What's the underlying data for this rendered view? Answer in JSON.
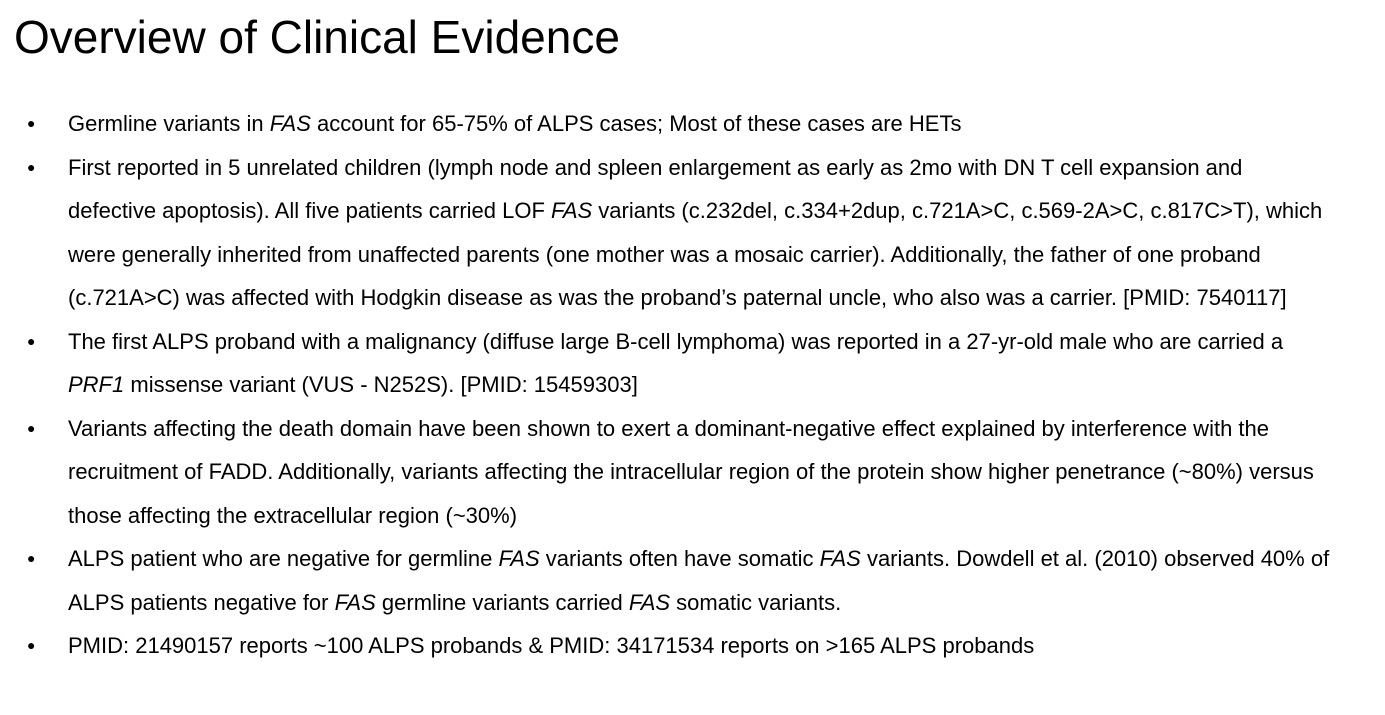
{
  "page": {
    "title": "Overview of Clinical Evidence"
  },
  "colors": {
    "text": "#000000",
    "background": "#ffffff"
  },
  "content": {
    "bullets": [
      {
        "segments": [
          {
            "text": "Germline variants in ",
            "italic": false
          },
          {
            "text": "FAS",
            "italic": true
          },
          {
            "text": " account for 65-75% of ALPS cases; Most of these cases are HETs",
            "italic": false
          }
        ]
      },
      {
        "segments": [
          {
            "text": "First reported in 5 unrelated children (lymph node and spleen enlargement as early as 2mo with DN T cell expansion and defective apoptosis). All five patients carried LOF ",
            "italic": false
          },
          {
            "text": "FAS",
            "italic": true
          },
          {
            "text": " variants (c.232del, c.334+2dup, c.721A>C, c.569-2A>C, c.817C>T), which were generally inherited from unaffected parents (one mother was a mosaic carrier). Additionally, the father of one proband (c.721A>C) was affected with Hodgkin disease as was the proband’s paternal uncle, who also was a carrier. [PMID: 7540117]",
            "italic": false
          }
        ]
      },
      {
        "segments": [
          {
            "text": "The first ALPS proband with a malignancy (diffuse large B-cell lymphoma) was reported in a 27-yr-old male who are carried a ",
            "italic": false
          },
          {
            "text": "PRF1",
            "italic": true
          },
          {
            "text": " missense variant (VUS - N252S). [PMID: 15459303]",
            "italic": false
          }
        ]
      },
      {
        "segments": [
          {
            "text": "Variants affecting the death domain have been shown to exert a dominant-negative effect explained by interference with the recruitment of FADD. Additionally, variants affecting the intracellular region of the protein show higher penetrance (~80%) versus those affecting the extracellular region (~30%)",
            "italic": false
          }
        ]
      },
      {
        "segments": [
          {
            "text": "ALPS patient who are negative for germline ",
            "italic": false
          },
          {
            "text": "FAS",
            "italic": true
          },
          {
            "text": " variants often have somatic ",
            "italic": false
          },
          {
            "text": "FAS",
            "italic": true
          },
          {
            "text": " variants. Dowdell et al. (2010) observed 40% of ALPS patients negative for ",
            "italic": false
          },
          {
            "text": "FAS",
            "italic": true
          },
          {
            "text": " germline variants carried ",
            "italic": false
          },
          {
            "text": "FAS",
            "italic": true
          },
          {
            "text": " somatic variants.",
            "italic": false
          }
        ]
      },
      {
        "segments": [
          {
            "text": "PMID: 21490157 reports ~100 ALPS probands & PMID: 34171534 reports on >165 ALPS probands",
            "italic": false
          }
        ]
      }
    ]
  }
}
